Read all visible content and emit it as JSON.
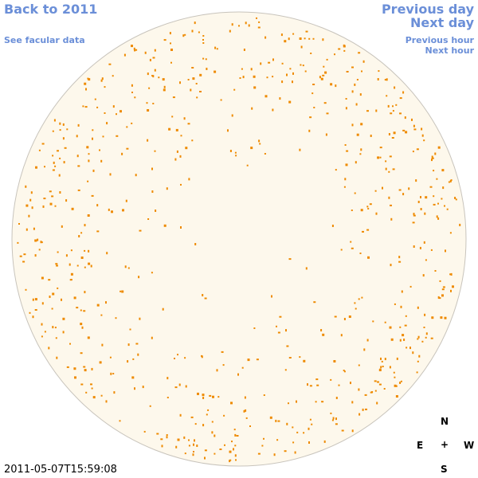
{
  "navigation": {
    "back": "Back to 2011",
    "facular_data": "See facular data",
    "previous_day": "Previous day",
    "next_day": "Next day",
    "previous_hour": "Previous hour",
    "next_hour": "Next hour"
  },
  "timestamp": "2011-05-07T15:59:08",
  "compass": {
    "north": "N",
    "east": "E",
    "center": "+",
    "west": "W",
    "south": "S"
  }
}
